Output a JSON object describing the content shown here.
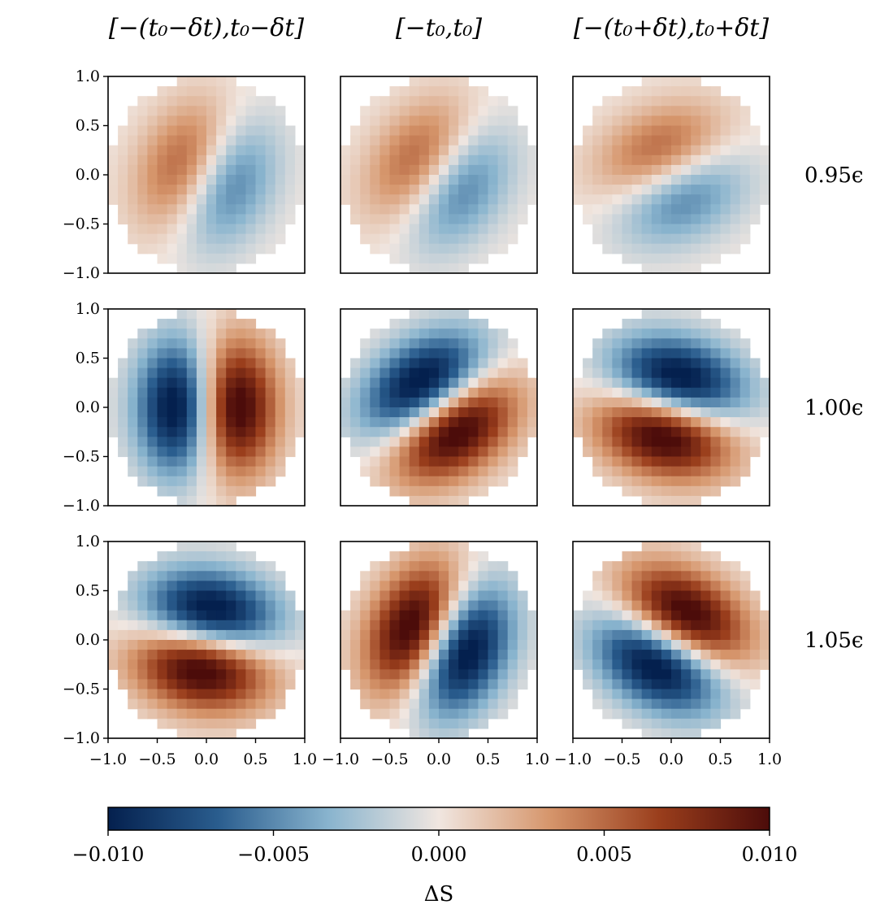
{
  "chart_data": {
    "type": "heatmap",
    "title": "",
    "column_titles": [
      "[−(t₀−δt),t₀−δt]",
      "[−t₀,t₀]",
      "[−(t₀+δt),t₀+δt]"
    ],
    "row_labels": [
      "0.95ϵ",
      "1.00ϵ",
      "1.05ϵ"
    ],
    "x_ticks": [
      "−1.0",
      "−0.5",
      "0.0",
      "0.5",
      "1.0"
    ],
    "y_ticks": [
      "1.0",
      "0.5",
      "0.0",
      "−0.5",
      "−1.0"
    ],
    "x_tick_values": [
      -1.0,
      -0.5,
      0.0,
      0.5,
      1.0
    ],
    "y_tick_values": [
      1.0,
      0.5,
      0.0,
      -0.5,
      -1.0
    ],
    "xlim": [
      -1.0,
      1.0
    ],
    "ylim": [
      -1.0,
      1.0
    ],
    "grid_resolution": 20,
    "pattern": "dipole inside unit disk: dS = A * u * exp(-2.2*(u^2/su^2 + v^2/sv^2)), u = x cos(phi) + y sin(phi), v = -x sin(phi) + y cos(phi); phi in degrees points toward the positive (red) lobe",
    "panels": [
      [
        {
          "phi_deg": 155,
          "su": 0.72,
          "sv": 1.0,
          "amplitude": 0.022
        },
        {
          "phi_deg": 145,
          "su": 0.72,
          "sv": 1.0,
          "amplitude": 0.022
        },
        {
          "phi_deg": 115,
          "su": 0.72,
          "sv": 1.0,
          "amplitude": 0.022
        }
      ],
      [
        {
          "phi_deg": 0,
          "su": 0.72,
          "sv": 1.0,
          "amplitude": 0.05
        },
        {
          "phi_deg": -55,
          "su": 0.72,
          "sv": 1.0,
          "amplitude": 0.05
        },
        {
          "phi_deg": -105,
          "su": 0.72,
          "sv": 1.0,
          "amplitude": 0.05
        }
      ],
      [
        {
          "phi_deg": -100,
          "su": 0.72,
          "sv": 1.0,
          "amplitude": 0.05
        },
        {
          "phi_deg": 155,
          "su": 0.72,
          "sv": 1.0,
          "amplitude": 0.05
        },
        {
          "phi_deg": 60,
          "su": 0.72,
          "sv": 1.0,
          "amplitude": 0.05
        }
      ]
    ],
    "colorbar": {
      "min": -0.01,
      "max": 0.01,
      "ticks": [
        "−0.010",
        "−0.005",
        "0.000",
        "0.005",
        "0.010"
      ],
      "tick_values": [
        -0.01,
        -0.005,
        0.0,
        0.005,
        0.01
      ],
      "label": "ΔS",
      "colormap": "blue-white-red (diverging)",
      "colors": [
        "#04204e",
        "#2a5d8e",
        "#89b4ce",
        "#f0e6e0",
        "#d6966c",
        "#9a3e1c",
        "#4c0c0a"
      ]
    }
  }
}
